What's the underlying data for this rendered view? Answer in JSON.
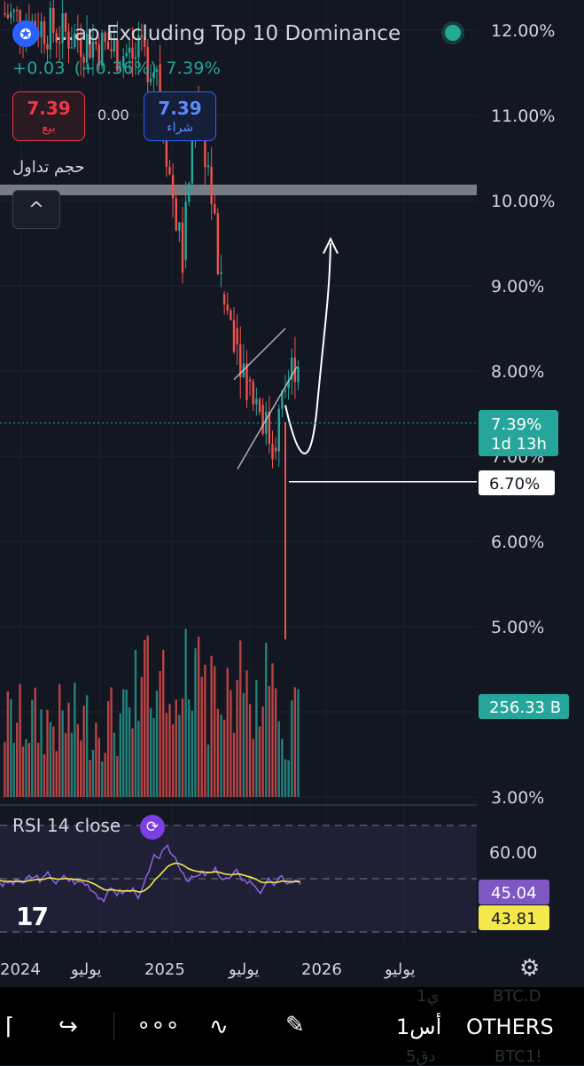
{
  "header": {
    "symbol_title": "...ap Excluding Top 10 Dominance",
    "change_abs": "+0.03",
    "change_pct": "(+0.36%)",
    "last": "7.39%",
    "sell_price": "7.39",
    "sell_label": "بيع",
    "buy_price": "7.39",
    "buy_label": "شراء",
    "spread": "0.00",
    "volume_label": "حجم تداول",
    "collapse_glyph": "^"
  },
  "price_labels": {
    "current": "7.39%",
    "countdown": "1d 13h",
    "line_level": "6.70%",
    "volume_value": "256.33 B"
  },
  "rsi": {
    "title": "RSI 14 close",
    "value": "45.04",
    "ma_value": "43.81",
    "level_label": "60.00"
  },
  "colors": {
    "up": "#26a69a",
    "down": "#ef5350",
    "rsi": "#8e63e6",
    "rsi_ma": "#f4e84a",
    "background": "#131722",
    "resistance": "#8a8d95"
  },
  "toolbar": {
    "symbol": "OTHERS",
    "interval": "1أس",
    "ghost_1": "BTC.D",
    "ghost_2": "BTC1!",
    "ghost_3": "1ي",
    "ghost_4": "5دق"
  },
  "icons": [
    "logo-icon",
    "status-dot-icon",
    "chevron-up-icon",
    "rsi-settings-icon",
    "tradingview-logo-icon",
    "settings-gear-icon",
    "bracket-icon",
    "redo-icon",
    "more-icon",
    "indicators-icon",
    "pen-icon"
  ],
  "chart_data": {
    "type": "candlestick",
    "y_axis": {
      "ticks": [
        12.0,
        11.0,
        10.0,
        9.0,
        8.0,
        7.0,
        6.0,
        5.0,
        4.0,
        3.0
      ],
      "tick_labels": [
        "12.00%",
        "11.00%",
        "10.00%",
        "9.00%",
        "8.00%",
        "7.00%",
        "6.00%",
        "5.00%",
        "4.00%",
        "3.00%"
      ],
      "ylim": [
        3.0,
        12.3
      ]
    },
    "x_axis": {
      "tick_labels": [
        "2024",
        "يوليو",
        "2025",
        "يوليو",
        "2026",
        "يوليو"
      ]
    },
    "series": [
      {
        "name": "",
        "close_path": [
          {
            "x": "2024-11",
            "y": 11.6
          },
          {
            "x": "2024-12",
            "y": 10.3
          },
          {
            "x": "2025-01",
            "y": 9.3
          },
          {
            "x": "2025-02",
            "y": 11.2
          },
          {
            "x": "2025-03",
            "y": 10.4
          },
          {
            "x": "2025-04",
            "y": 8.9
          },
          {
            "x": "2025-05",
            "y": 8.5
          },
          {
            "x": "2025-06",
            "y": 7.9
          },
          {
            "x": "2025-07",
            "y": 7.6
          },
          {
            "x": "2025-08",
            "y": 7.1
          },
          {
            "x": "2025-09",
            "y": 7.8
          },
          {
            "x": "2025-10",
            "y": 8.2
          },
          {
            "x": "2025-11",
            "y": 6.7
          },
          {
            "x": "2025-12",
            "y": 7.39
          }
        ],
        "notable": {
          "wick_low": 4.85,
          "last": 7.39
        }
      }
    ],
    "annotations": {
      "resistance_zone": [
        10.08,
        10.18
      ],
      "horizontal_line": 6.7,
      "rising_channel": {
        "lower": [
          [
            "2025-07",
            6.9
          ],
          [
            "2025-10",
            7.5
          ]
        ],
        "upper": [
          [
            "2025-07",
            7.9
          ],
          [
            "2025-10",
            8.5
          ]
        ]
      },
      "projected_path": [
        [
          "2025-11",
          7.6
        ],
        [
          "2025-12",
          6.9
        ],
        [
          "2026-01",
          7.1
        ],
        [
          "2026-02",
          9.6
        ]
      ]
    },
    "rsi_levels": [
      70,
      60,
      50,
      40,
      30
    ]
  }
}
